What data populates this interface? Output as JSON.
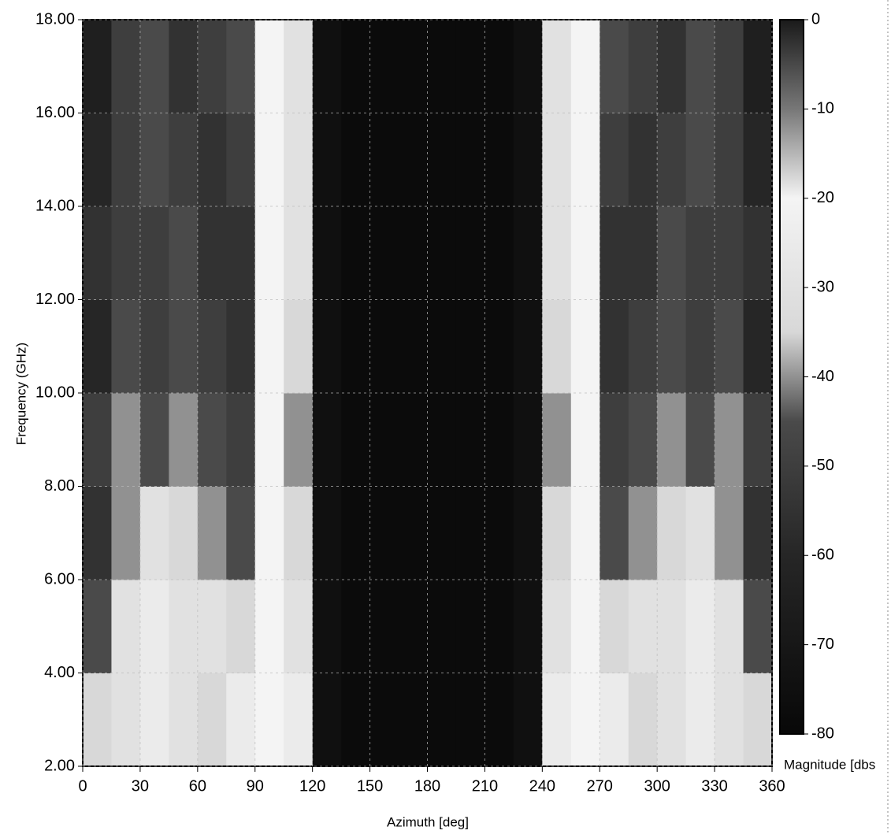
{
  "chart_data": {
    "type": "heatmap",
    "x_label": "Azimuth [deg]",
    "y_label": "Frequency (GHz)",
    "colorbar_label": "Magnitude [dbs",
    "x": [
      7.5,
      22.5,
      37.5,
      52.5,
      67.5,
      82.5,
      97.5,
      112.5,
      127.5,
      142.5,
      157.5,
      172.5,
      187.5,
      202.5,
      217.5,
      232.5,
      247.5,
      262.5,
      277.5,
      292.5,
      307.5,
      322.5,
      337.5,
      352.5
    ],
    "y": [
      3,
      5,
      7,
      9,
      11,
      13,
      15,
      17
    ],
    "z": [
      [
        -35,
        -30,
        -25,
        -30,
        -35,
        -25,
        -20,
        -25,
        -75,
        -78,
        -78,
        -78,
        -78,
        -78,
        -78,
        -75,
        -25,
        -20,
        -25,
        -35,
        -30,
        -25,
        -30,
        -35
      ],
      [
        -45,
        -30,
        -25,
        -30,
        -30,
        -35,
        -20,
        -30,
        -75,
        -78,
        -78,
        -78,
        -78,
        -78,
        -78,
        -75,
        -30,
        -20,
        -35,
        -30,
        -30,
        -25,
        -30,
        -45
      ],
      [
        -55,
        -40,
        -30,
        -35,
        -40,
        -45,
        -20,
        -35,
        -75,
        -78,
        -78,
        -78,
        -78,
        -78,
        -78,
        -75,
        -35,
        -20,
        -45,
        -40,
        -35,
        -30,
        -40,
        -55
      ],
      [
        -50,
        -40,
        -45,
        -40,
        -45,
        -50,
        -20,
        -40,
        -75,
        -78,
        -78,
        -78,
        -78,
        -78,
        -78,
        -75,
        -40,
        -20,
        -50,
        -45,
        -40,
        -45,
        -40,
        -50
      ],
      [
        -60,
        -45,
        -50,
        -45,
        -50,
        -55,
        -20,
        -35,
        -75,
        -78,
        -78,
        -78,
        -78,
        -78,
        -78,
        -75,
        -35,
        -20,
        -55,
        -50,
        -45,
        -50,
        -45,
        -60
      ],
      [
        -55,
        -50,
        -50,
        -45,
        -55,
        -55,
        -20,
        -30,
        -75,
        -78,
        -78,
        -78,
        -78,
        -78,
        -78,
        -75,
        -30,
        -20,
        -55,
        -55,
        -45,
        -50,
        -50,
        -55
      ],
      [
        -60,
        -50,
        -45,
        -50,
        -55,
        -50,
        -20,
        -30,
        -75,
        -78,
        -78,
        -78,
        -78,
        -78,
        -78,
        -75,
        -30,
        -20,
        -50,
        -55,
        -50,
        -45,
        -50,
        -60
      ],
      [
        -65,
        -50,
        -45,
        -55,
        -50,
        -45,
        -20,
        -30,
        -75,
        -78,
        -78,
        -78,
        -78,
        -78,
        -78,
        -75,
        -30,
        -20,
        -45,
        -50,
        -55,
        -45,
        -50,
        -65
      ]
    ],
    "xlim": [
      0,
      360
    ],
    "xticks": [
      0,
      30,
      60,
      90,
      120,
      150,
      180,
      210,
      240,
      270,
      300,
      330,
      360
    ],
    "ylim": [
      2,
      18
    ],
    "yticks": [
      {
        "value": 2,
        "label": "2.00"
      },
      {
        "value": 4,
        "label": "4.00"
      },
      {
        "value": 6,
        "label": "6.00"
      },
      {
        "value": 8,
        "label": "8.00"
      },
      {
        "value": 10,
        "label": "10.00"
      },
      {
        "value": 12,
        "label": "12.00"
      },
      {
        "value": 14,
        "label": "14.00"
      },
      {
        "value": 16,
        "label": "16.00"
      },
      {
        "value": 18,
        "label": "18.00"
      }
    ],
    "zlim": [
      -80,
      0
    ],
    "zticks": [
      0,
      -10,
      -20,
      -30,
      -40,
      -50,
      -60,
      -70,
      -80
    ],
    "colorscale": [
      [
        -80,
        "#080808"
      ],
      [
        -60,
        "#262626"
      ],
      [
        -45,
        "#4a4a4a"
      ],
      [
        -35,
        "#d8d8d8"
      ],
      [
        -20,
        "#f4f4f4"
      ],
      [
        -10,
        "#777777"
      ],
      [
        0,
        "#1a1a1a"
      ]
    ],
    "grid": true
  }
}
